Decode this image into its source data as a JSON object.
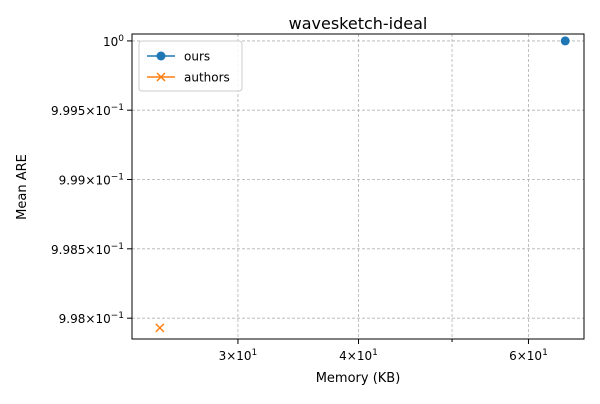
{
  "chart_data": {
    "type": "line",
    "title": "wavesketch-ideal",
    "xlabel": "Memory (KB)",
    "ylabel": "Mean ARE",
    "xscale": "log",
    "yscale": "log",
    "grid": true,
    "legend_position": "top-left",
    "xlim": [
      23.3,
      68.5
    ],
    "ylim": [
      0.99785,
      1.00005
    ],
    "x_ticks": [
      {
        "value": 30,
        "base": "3×10",
        "exp": "1"
      },
      {
        "value": 40,
        "base": "4×10",
        "exp": "1"
      },
      {
        "value": 50,
        "base": "",
        "exp": ""
      },
      {
        "value": 60,
        "base": "6×10",
        "exp": "1"
      }
    ],
    "y_ticks": [
      {
        "value": 1.0,
        "base": "10",
        "exp": "0"
      },
      {
        "value": 0.9995,
        "base": "9.995×10",
        "exp": "−1"
      },
      {
        "value": 0.999,
        "base": "9.99×10",
        "exp": "−1"
      },
      {
        "value": 0.9985,
        "base": "9.985×10",
        "exp": "−1"
      },
      {
        "value": 0.998,
        "base": "9.98×10",
        "exp": "−1"
      }
    ],
    "series": [
      {
        "name": "ours",
        "color": "#1f77b4",
        "marker": "circle",
        "points": [
          {
            "x": 65.5,
            "y": 1.0
          }
        ]
      },
      {
        "name": "authors",
        "color": "#ff7f0e",
        "marker": "x",
        "points": [
          {
            "x": 24.9,
            "y": 0.99793
          }
        ]
      }
    ]
  }
}
